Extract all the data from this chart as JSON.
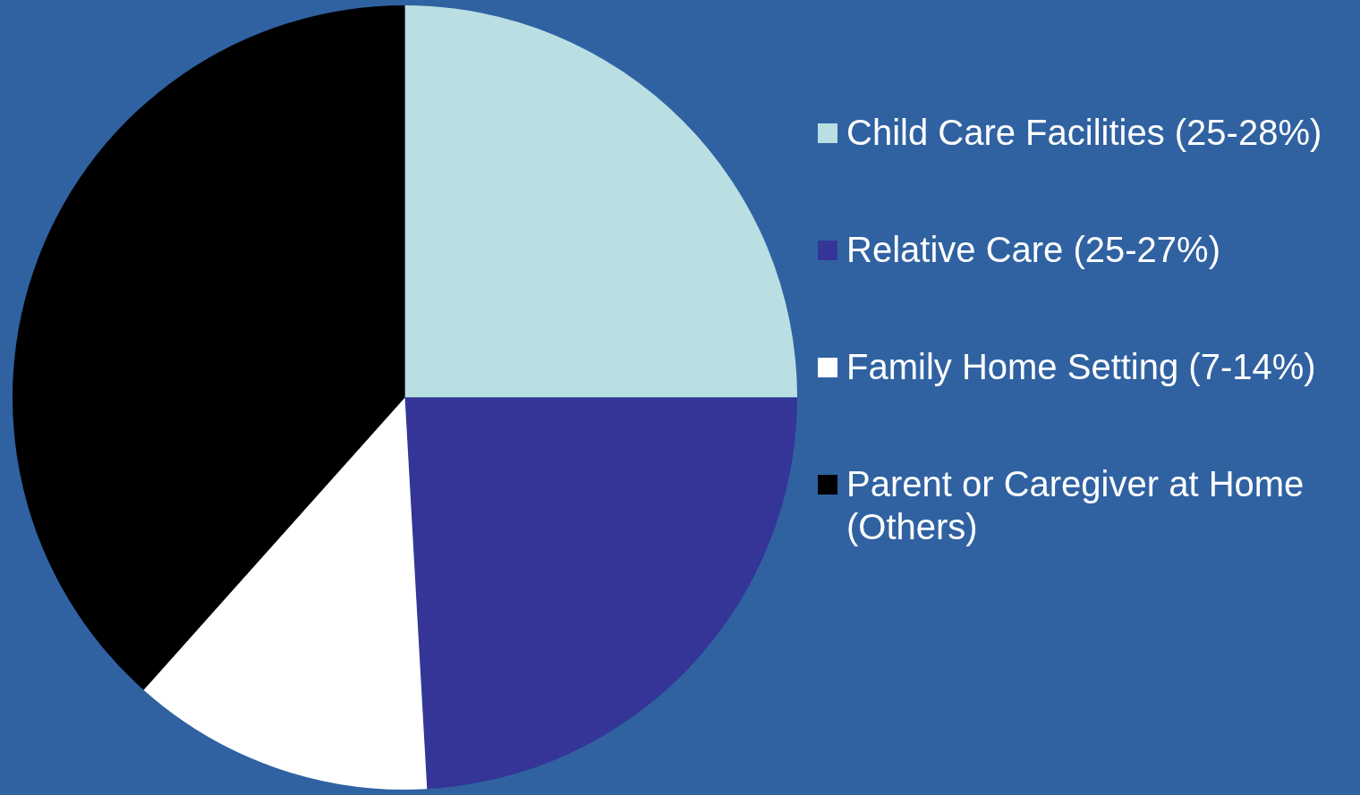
{
  "chart_data": {
    "type": "pie",
    "categories": [
      "Child Care Facilities (25-28%)",
      "Relative Care (25-27%)",
      "Family Home Setting (7-14%)",
      "Parent or Caregiver at Home (Others)"
    ],
    "values": [
      25,
      24.1,
      12.5,
      38.4
    ],
    "colors": [
      "#b9dfe3",
      "#343597",
      "#ffffff",
      "#000000"
    ],
    "legend": "right"
  }
}
